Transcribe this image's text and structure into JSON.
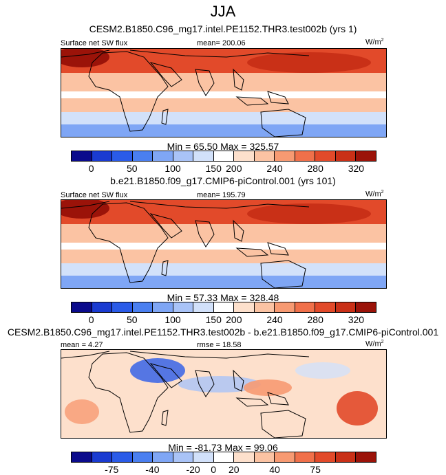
{
  "title": "JJA",
  "colors": {
    "abs_scale": [
      "#0b0b8c",
      "#1a3bd1",
      "#2a5be8",
      "#4a7ff0",
      "#7fa6f5",
      "#a9c3f7",
      "#d2e1fa",
      "#ffffff",
      "#fde0cc",
      "#fbc3a3",
      "#f79a72",
      "#f0704a",
      "#e24a2a",
      "#c93017",
      "#9b1309"
    ],
    "diff_scale": [
      "#0b0b8c",
      "#1a3bd1",
      "#2a5be8",
      "#4a7ff0",
      "#7fa6f5",
      "#a9c3f7",
      "#d2e1fa",
      "#ffffff",
      "#fde0cc",
      "#fbc3a3",
      "#f79a72",
      "#f0704a",
      "#e24a2a",
      "#c93017",
      "#9b1309"
    ],
    "land_outline": "#000000"
  },
  "chart_data": [
    {
      "type": "heatmap",
      "caption": "CESM2.B1850.C96_mg17.intel.PE1152.THR3.test002b (yrs 1)",
      "variable": "Surface net SW flux",
      "stat_text": "mean= 200.06",
      "mean": 200.06,
      "units_base": "W/m",
      "units_exp": "2",
      "min_max_text": "Min =  65.50 Max = 325.57",
      "min": 65.5,
      "max": 325.57,
      "colorbar_ticks": [
        "0",
        "50",
        "100",
        "150",
        "200",
        "240",
        "280",
        "320"
      ],
      "colorbar_levels": [
        0,
        50,
        100,
        150,
        200,
        240,
        280,
        320
      ]
    },
    {
      "type": "heatmap",
      "caption": "b.e21.B1850.f09_g17.CMIP6-piControl.001 (yrs 101)",
      "variable": "Surface net SW flux",
      "stat_text": "mean= 195.79",
      "mean": 195.79,
      "units_base": "W/m",
      "units_exp": "2",
      "min_max_text": "Min =  57.33 Max = 328.48",
      "min": 57.33,
      "max": 328.48,
      "colorbar_ticks": [
        "0",
        "50",
        "100",
        "150",
        "200",
        "240",
        "280",
        "320"
      ],
      "colorbar_levels": [
        0,
        50,
        100,
        150,
        200,
        240,
        280,
        320
      ]
    },
    {
      "type": "heatmap",
      "caption": "CESM2.B1850.C96_mg17.intel.PE1152.THR3.test002b - b.e21.B1850.f09_g17.CMIP6-piControl.001",
      "mean_text": "mean =   4.27",
      "mean": 4.27,
      "rmse_text": "rmse = 18.58",
      "rmse": 18.58,
      "units_base": "W/m",
      "units_exp": "2",
      "min_max_text": "Min = -81.73 Max =  99.06",
      "min": -81.73,
      "max": 99.06,
      "colorbar_ticks": [
        "-75",
        "-40",
        "-20",
        "0",
        "20",
        "40",
        "75"
      ],
      "colorbar_levels": [
        -75,
        -40,
        -20,
        0,
        20,
        40,
        75
      ]
    }
  ]
}
